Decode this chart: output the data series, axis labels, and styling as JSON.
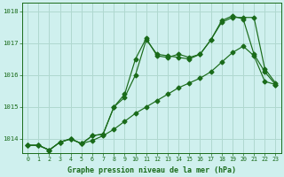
{
  "title": "Graphe pression niveau de la mer (hPa)",
  "bg_color": "#cff0ee",
  "grid_color": "#b0d8d0",
  "line_color": "#1a6b1a",
  "xlim_min": -0.5,
  "xlim_max": 23.5,
  "ylim_min": 1013.55,
  "ylim_max": 1018.25,
  "yticks": [
    1014,
    1015,
    1016,
    1017,
    1018
  ],
  "xticks": [
    0,
    1,
    2,
    3,
    4,
    5,
    6,
    7,
    8,
    9,
    10,
    11,
    12,
    13,
    14,
    15,
    16,
    17,
    18,
    19,
    20,
    21,
    22,
    23
  ],
  "series1_x": [
    0,
    1,
    2,
    3,
    4,
    5,
    6,
    7,
    8,
    9,
    10,
    11,
    12,
    13,
    14,
    15,
    16,
    17,
    18,
    19,
    20,
    21,
    22,
    23
  ],
  "series1_y": [
    1013.8,
    1013.8,
    1013.65,
    1013.9,
    1014.0,
    1013.85,
    1013.95,
    1014.1,
    1014.3,
    1014.55,
    1014.8,
    1015.0,
    1015.2,
    1015.4,
    1015.6,
    1015.75,
    1015.9,
    1016.1,
    1016.4,
    1016.7,
    1016.9,
    1016.6,
    1015.8,
    1015.7
  ],
  "series2_x": [
    0,
    1,
    2,
    3,
    4,
    5,
    6,
    7,
    8,
    9,
    10,
    11,
    12,
    13,
    14,
    15,
    16,
    17,
    18,
    19,
    20,
    21,
    22,
    23
  ],
  "series2_y": [
    1013.8,
    1013.8,
    1013.65,
    1013.9,
    1014.0,
    1013.85,
    1014.1,
    1014.15,
    1015.0,
    1015.3,
    1016.0,
    1017.1,
    1016.65,
    1016.6,
    1016.55,
    1016.5,
    1016.65,
    1017.1,
    1017.65,
    1017.8,
    1017.8,
    1017.8,
    1016.2,
    1015.75
  ],
  "series3_x": [
    0,
    1,
    2,
    3,
    4,
    5,
    6,
    7,
    8,
    9,
    10,
    11,
    12,
    13,
    14,
    15,
    16,
    17,
    18,
    19,
    20,
    21,
    22,
    23
  ],
  "series3_y": [
    1013.8,
    1013.8,
    1013.65,
    1013.9,
    1014.0,
    1013.85,
    1014.1,
    1014.15,
    1015.0,
    1015.4,
    1016.5,
    1017.15,
    1016.6,
    1016.55,
    1016.65,
    1016.55,
    1016.65,
    1017.1,
    1017.7,
    1017.85,
    1017.75,
    1016.65,
    1016.1,
    1015.7
  ]
}
